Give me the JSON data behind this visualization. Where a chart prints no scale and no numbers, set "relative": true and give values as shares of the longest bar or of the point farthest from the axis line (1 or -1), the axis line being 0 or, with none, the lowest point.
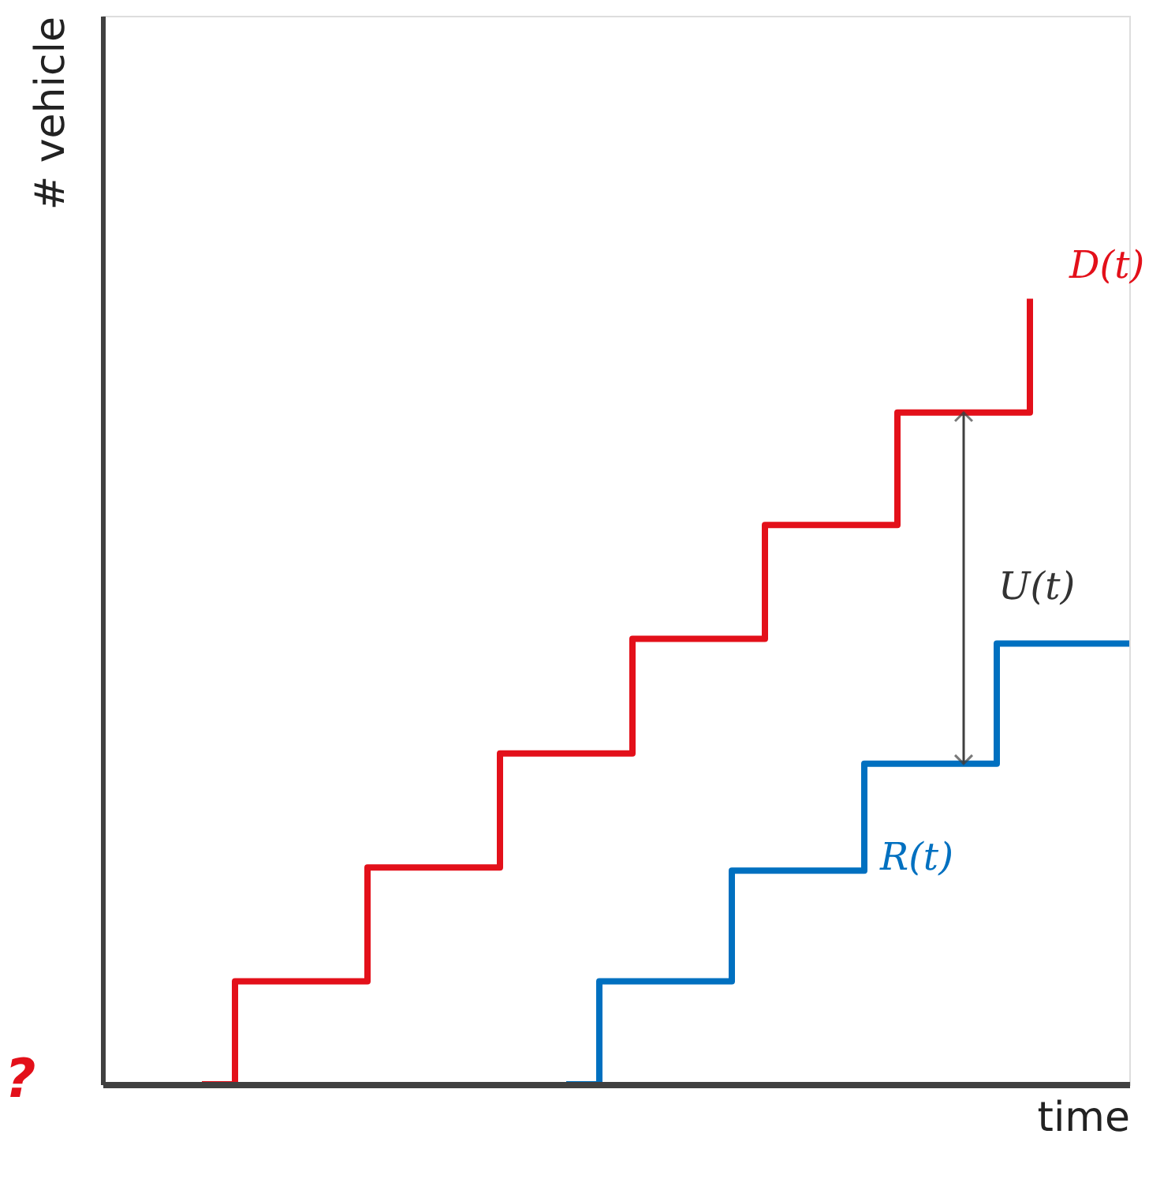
{
  "chart_data": {
    "type": "step",
    "relative": true,
    "xlabel": "time",
    "ylabel": "# vehicle",
    "tick_labels": false,
    "grid": false,
    "legend": false,
    "marker": "none",
    "line_style": "solid",
    "categories": [
      null,
      null,
      null,
      null,
      null,
      null,
      null,
      null,
      null,
      null,
      null,
      null,
      null,
      null,
      null,
      null,
      null,
      null,
      null,
      null,
      null,
      null,
      null,
      null,
      null,
      null,
      null,
      null,
      null,
      null,
      null,
      null
    ],
    "series": [
      {
        "name": "D(t)",
        "color": "#e3101a",
        "values": [
          null,
          null,
          null,
          0,
          0.131,
          0.131,
          0.131,
          0.131,
          0.276,
          0.276,
          0.276,
          0.276,
          0.421,
          0.421,
          0.421,
          0.421,
          0.567,
          0.567,
          0.567,
          0.567,
          0.712,
          0.712,
          0.712,
          0.712,
          0.855,
          0.855,
          0.855,
          0.855,
          1,
          null,
          null,
          null
        ]
      },
      {
        "name": "R(t)",
        "color": "#0070c0",
        "values": [
          null,
          null,
          null,
          null,
          null,
          null,
          null,
          null,
          null,
          null,
          null,
          null,
          null,
          null,
          0,
          0.131,
          0.131,
          0.131,
          0.131,
          0.272,
          0.272,
          0.272,
          0.272,
          0.408,
          0.408,
          0.408,
          0.408,
          0.561,
          0.561,
          0.561,
          0.561,
          0.561
        ]
      }
    ],
    "annotations": [
      "U(t)",
      "?"
    ]
  }
}
